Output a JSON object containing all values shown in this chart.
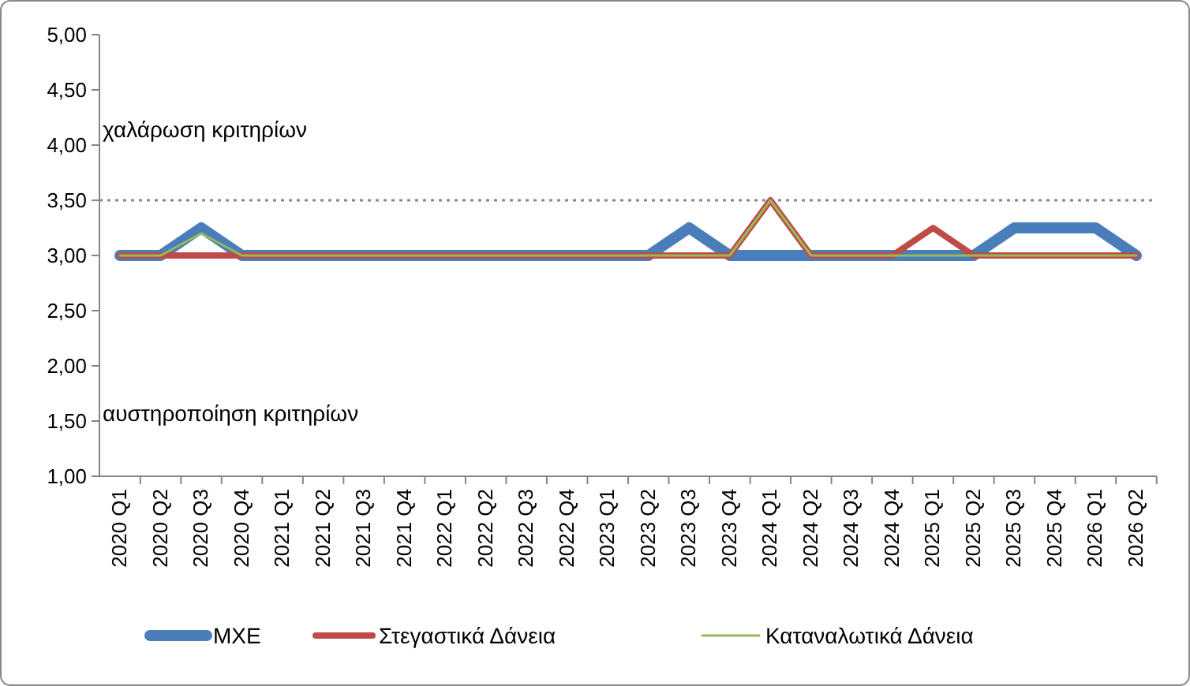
{
  "chart_data": {
    "type": "line",
    "categories": [
      "2020 Q1",
      "2020 Q2",
      "2020 Q3",
      "2020 Q4",
      "2021 Q1",
      "2021 Q2",
      "2021 Q3",
      "2021 Q4",
      "2022 Q1",
      "2022 Q2",
      "2022 Q3",
      "2022 Q4",
      "2023 Q1",
      "2023 Q2",
      "2023 Q3",
      "2023 Q4",
      "2024 Q1",
      "2024 Q2",
      "2024 Q3",
      "2024 Q4",
      "2025 Q1",
      "2025 Q2",
      "2025 Q3",
      "2025 Q4",
      "2026 Q1",
      "2026 Q2"
    ],
    "series": [
      {
        "name": "ΜΧΕ",
        "color": "#4a7ebb",
        "values": [
          3,
          3,
          3.25,
          3,
          3,
          3,
          3,
          3,
          3,
          3,
          3,
          3,
          3,
          3,
          3.25,
          3,
          3,
          3,
          3,
          3,
          3,
          3,
          3.25,
          3.25,
          3.25,
          3
        ]
      },
      {
        "name": "Στεγαστικά Δάνεια",
        "color": "#be4b48",
        "values": [
          3,
          3,
          3,
          3,
          3,
          3,
          3,
          3,
          3,
          3,
          3,
          3,
          3,
          3,
          3,
          3,
          3.5,
          3,
          3,
          3,
          3.25,
          3,
          3,
          3,
          3,
          3
        ]
      },
      {
        "name": "Καταναλωτικά Δάνεια",
        "color": "#98b954",
        "values": [
          3,
          3,
          3.2,
          3,
          3,
          3,
          3,
          3,
          3,
          3,
          3,
          3,
          3,
          3,
          3,
          3,
          3.5,
          3,
          3,
          3,
          3,
          3,
          3,
          3,
          3,
          3
        ]
      }
    ],
    "ylim": [
      1,
      5
    ],
    "yticks": [
      {
        "value": 1,
        "label": "1,00"
      },
      {
        "value": 1.5,
        "label": "1,50"
      },
      {
        "value": 2,
        "label": "2,00"
      },
      {
        "value": 2.5,
        "label": "2,50"
      },
      {
        "value": 3,
        "label": "3,00"
      },
      {
        "value": 3.5,
        "label": "3,50"
      },
      {
        "value": 4,
        "label": "4,00"
      },
      {
        "value": 4.5,
        "label": "4,50"
      },
      {
        "value": 5,
        "label": "5,00"
      }
    ],
    "ref_lines": [
      {
        "axis": "y",
        "value": 3.5,
        "color": "#888888",
        "line_style": "dotted"
      }
    ],
    "annotations": [
      "χαλάρωση κριτηρίων",
      "αυστηροποίηση κριτηρίων"
    ],
    "legend": "bottom",
    "line_style": "solid",
    "grid": false
  }
}
